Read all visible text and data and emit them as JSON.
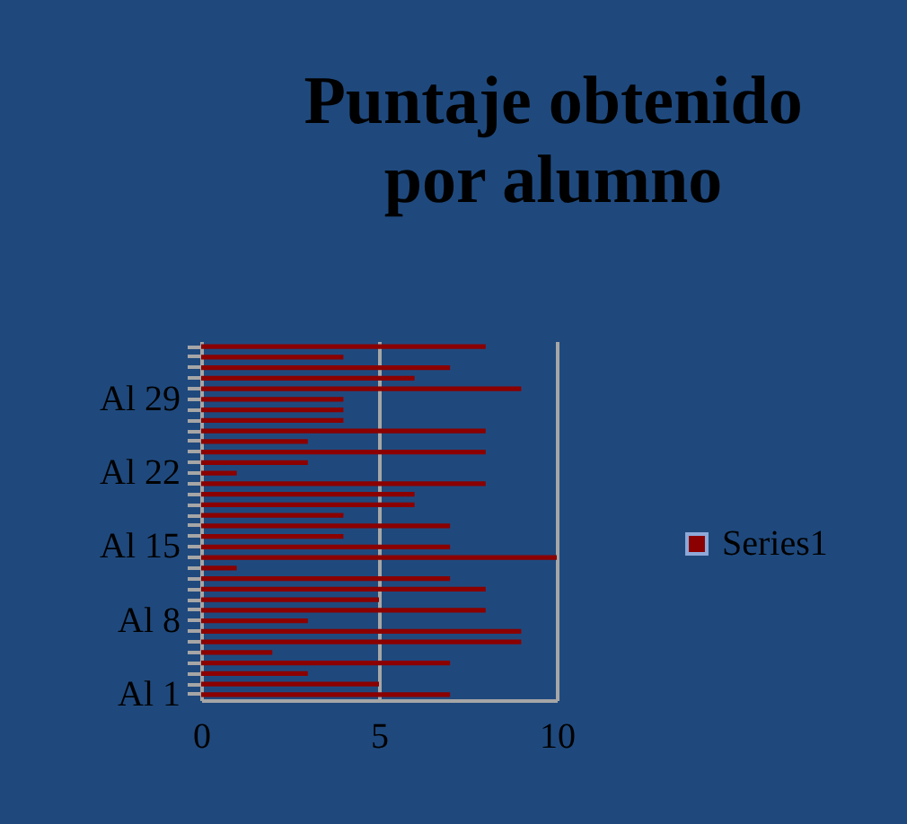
{
  "chart_data": {
    "type": "bar",
    "orientation": "horizontal",
    "title": "Puntaje obtenido por alumno",
    "categories": [
      null,
      null,
      null,
      null,
      null,
      "Al 29",
      null,
      null,
      null,
      null,
      null,
      null,
      "Al 22",
      null,
      null,
      null,
      null,
      null,
      null,
      "Al 15",
      null,
      null,
      null,
      null,
      null,
      null,
      "Al 8",
      null,
      null,
      null,
      null,
      null,
      null,
      "Al 1"
    ],
    "series": [
      {
        "name": "Series1",
        "color": "#8b0000",
        "values": [
          8,
          4,
          7,
          6,
          9,
          4,
          4,
          4,
          8,
          3,
          8,
          3,
          1,
          8,
          6,
          6,
          4,
          7,
          4,
          7,
          10,
          1,
          7,
          8,
          5,
          8,
          3,
          9,
          9,
          2,
          7,
          3,
          5,
          7
        ]
      }
    ],
    "xlim": [
      0,
      10
    ],
    "xticks": [
      0,
      5,
      10
    ],
    "grid": "x",
    "legend": "right"
  }
}
